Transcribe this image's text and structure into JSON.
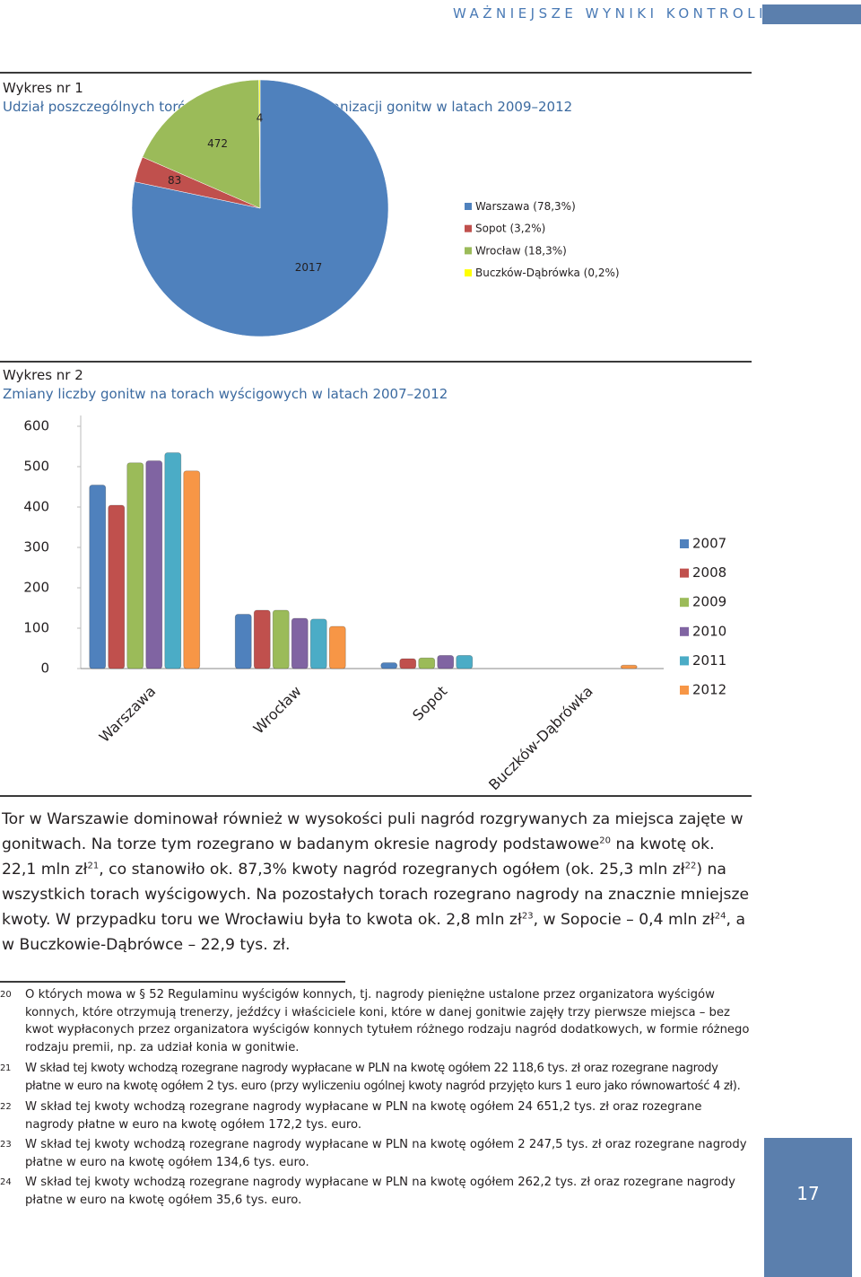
{
  "header": {
    "title": "WAŻNIEJSZE WYNIKI KONTROLI"
  },
  "chart_data": [
    {
      "type": "pie",
      "title": "Wykres nr 1",
      "subtitle": "Udział poszczególnych torów wyścigowych w organizacji gonitw w latach 2009–2012",
      "categories": [
        "Warszawa (78,3%)",
        "Sopot (3,2%)",
        "Wrocław (18,3%)",
        "Buczków-Dąbrówka (0,2%)"
      ],
      "values": [
        2017,
        83,
        472,
        4
      ],
      "colors": [
        "#4f81bd",
        "#c0504d",
        "#9bbb59",
        "#ffff00"
      ]
    },
    {
      "type": "bar",
      "title": "Wykres nr 2",
      "subtitle": "Zmiany liczby gonitw na torach wyścigowych w latach 2007–2012",
      "categories": [
        "Warszawa",
        "Wrocław",
        "Sopot",
        "Buczków-Dąbrówka"
      ],
      "series": [
        {
          "name": "2007",
          "color": "#4f81bd",
          "values": [
            450,
            130,
            10,
            null
          ]
        },
        {
          "name": "2008",
          "color": "#c0504d",
          "values": [
            400,
            140,
            20,
            null
          ]
        },
        {
          "name": "2009",
          "color": "#9bbb59",
          "values": [
            505,
            140,
            22,
            null
          ]
        },
        {
          "name": "2010",
          "color": "#8064a2",
          "values": [
            510,
            120,
            28,
            null
          ]
        },
        {
          "name": "2011",
          "color": "#4bacc6",
          "values": [
            530,
            118,
            28,
            null
          ]
        },
        {
          "name": "2012",
          "color": "#f79646",
          "values": [
            485,
            100,
            null,
            4
          ]
        }
      ],
      "ylim": [
        0,
        600
      ],
      "yticks": [
        0,
        100,
        200,
        300,
        400,
        500,
        600
      ],
      "grid": false,
      "legend": "right"
    }
  ],
  "paragraph": {
    "parts": [
      "Tor w Warszawie dominował również w wysokości puli nagród rozgrywanych za miejsca zajęte w gonitwach. Na torze tym rozegrano w badanym okresie nagrody podstawowe",
      " na kwotę ok. 22,1 mln zł",
      ", co stanowiło ok. 87,3% kwoty nagród rozegranych ogółem (ok. 25,3 mln zł",
      ") na wszystkich torach wyścigowych. Na pozostałych torach rozegrano nagrody na znacznie mniejsze kwoty. W przypadku toru we Wrocławiu była to kwota ok. 2,8 mln zł",
      ", w Sopocie – 0,4 mln zł",
      ", a w Buczkowie-Dąbrówce – 22,9 tys. zł."
    ],
    "refs": [
      "20",
      "21",
      "22",
      "23",
      "24"
    ]
  },
  "footnotes": [
    {
      "number": "20",
      "text": "O których mowa w § 52 Regulaminu wyścigów konnych, tj. nagrody pieniężne ustalone przez organizatora wyścigów konnych, które otrzymują trenerzy, jeźdźcy i właściciele koni, które w danej gonitwie zajęły trzy pierwsze miejsca – bez kwot wypłaconych przez organizatora wyścigów konnych tytułem różnego rodzaju nagród dodatkowych, w formie różnego rodzaju premii, np. za udział konia w gonitwie."
    },
    {
      "number": "21",
      "text": "W skład tej kwoty wchodzą rozegrane nagrody wypłacane w PLN na kwotę ogółem 22 118,6 tys. zł oraz rozegrane nagrody płatne w euro na kwotę ogółem 2 tys. euro (przy wyliczeniu ogólnej kwoty nagród przyjęto kurs 1 euro jako równowartość 4 zł)."
    },
    {
      "number": "22",
      "text": "W skład tej kwoty wchodzą rozegrane nagrody wypłacane w PLN na kwotę ogółem 24 651,2 tys. zł oraz rozegrane nagrody płatne w euro na kwotę ogółem 172,2 tys. euro."
    },
    {
      "number": "23",
      "text": "W skład tej kwoty wchodzą rozegrane nagrody wypłacane w PLN na kwotę ogółem 2 247,5 tys. zł oraz rozegrane nagrody płatne w euro na kwotę ogółem 134,6 tys. euro."
    },
    {
      "number": "24",
      "text": "W skład tej kwoty wchodzą rozegrane nagrody wypłacane w PLN na kwotę ogółem 262,2 tys. zł oraz rozegrane nagrody płatne w euro na kwotę ogółem 35,6 tys. euro."
    }
  ],
  "page_number": "17"
}
